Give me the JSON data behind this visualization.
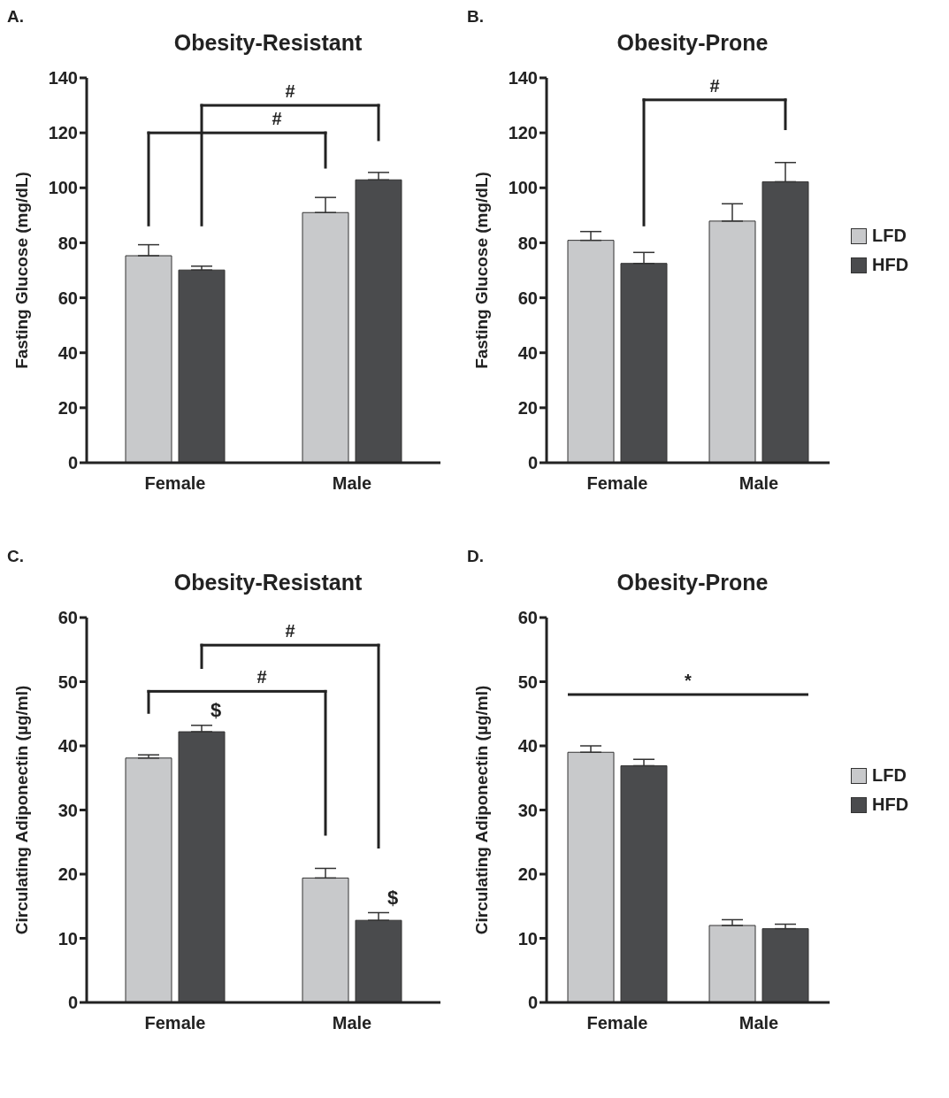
{
  "chart_data": [
    {
      "type": "bar",
      "title": "Obesity-Resistant",
      "ylabel": "Fasting Glucose (mg/dL)",
      "categories": [
        "Female",
        "Male"
      ],
      "series": [
        {
          "color": "#c8c9cb",
          "values": [
            75.3,
            91.0
          ],
          "errors": [
            [
              75.3,
              79.3
            ],
            [
              91.0,
              96.5
            ]
          ]
        },
        {
          "color": "#4a4b4d",
          "values": [
            70.1,
            102.9
          ],
          "errors": [
            [
              70.1,
              71.5
            ],
            [
              102.9,
              105.6
            ]
          ]
        }
      ],
      "ylim": [
        0,
        140
      ],
      "yticks": [
        0,
        20,
        40,
        60,
        80,
        100,
        120,
        140
      ],
      "grid": false,
      "legend": false,
      "annotations": [
        "A.",
        "#",
        "#"
      ]
    },
    {
      "type": "bar",
      "title": "Obesity-Prone",
      "ylabel": "Fasting Glucose (mg/dL)",
      "categories": [
        "Female",
        "Male"
      ],
      "series": [
        {
          "name": "LFD",
          "color": "#c8c9cb",
          "values": [
            80.9,
            87.9
          ],
          "errors": [
            [
              80.9,
              84.1
            ],
            [
              87.9,
              94.2
            ]
          ]
        },
        {
          "name": "HFD",
          "color": "#4a4b4d",
          "values": [
            72.5,
            102.2
          ],
          "errors": [
            [
              72.5,
              76.5
            ],
            [
              102.2,
              109.2
            ]
          ]
        }
      ],
      "ylim": [
        0,
        140
      ],
      "yticks": [
        0,
        20,
        40,
        60,
        80,
        100,
        120,
        140
      ],
      "grid": false,
      "legend": "right",
      "annotations": [
        "B.",
        "#"
      ]
    },
    {
      "type": "bar",
      "title": "Obesity-Resistant",
      "ylabel": "Circulating Adiponectin (µg/ml)",
      "categories": [
        "Female",
        "Male"
      ],
      "series": [
        {
          "color": "#c8c9cb",
          "values": [
            38.1,
            19.4
          ],
          "errors": [
            [
              38.1,
              38.6
            ],
            [
              19.4,
              20.9
            ]
          ]
        },
        {
          "color": "#4a4b4d",
          "values": [
            42.2,
            12.8
          ],
          "errors": [
            [
              42.2,
              43.2
            ],
            [
              12.8,
              14.0
            ]
          ]
        }
      ],
      "ylim": [
        0,
        60
      ],
      "yticks": [
        0,
        10,
        20,
        30,
        40,
        50,
        60
      ],
      "grid": false,
      "legend": false,
      "annotations": [
        "C.",
        "#",
        "#",
        "$",
        "$"
      ]
    },
    {
      "type": "bar",
      "title": "Obesity-Prone",
      "ylabel": "Circulating Adiponectin (µg/ml)",
      "categories": [
        "Female",
        "Male"
      ],
      "series": [
        {
          "name": "LFD",
          "color": "#c8c9cb",
          "values": [
            39.0,
            12.0
          ],
          "errors": [
            [
              39.0,
              40.0
            ],
            [
              12.0,
              12.9
            ]
          ]
        },
        {
          "name": "HFD",
          "color": "#4a4b4d",
          "values": [
            36.9,
            11.5
          ],
          "errors": [
            [
              36.9,
              37.9
            ],
            [
              11.5,
              12.2
            ]
          ]
        }
      ],
      "ylim": [
        0,
        60
      ],
      "yticks": [
        0,
        10,
        20,
        30,
        40,
        50,
        60
      ],
      "grid": false,
      "legend": "right",
      "annotations": [
        "D.",
        "*"
      ]
    }
  ]
}
